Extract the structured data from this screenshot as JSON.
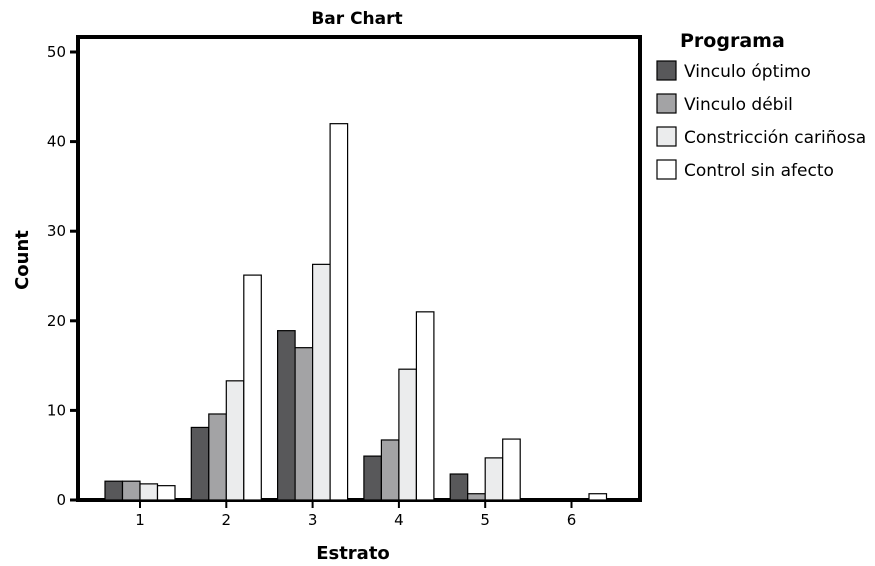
{
  "chart_data": {
    "type": "bar",
    "title": "Bar Chart",
    "xlabel": "Estrato",
    "ylabel": "Count",
    "categories": [
      "1",
      "2",
      "3",
      "4",
      "5",
      "6"
    ],
    "ylim": [
      0,
      50
    ],
    "yticks": [
      "0",
      "10",
      "20",
      "30",
      "40",
      "50"
    ],
    "legend_title": "Programa",
    "legend_position": "right",
    "grid": false,
    "series": [
      {
        "name": "Vinculo óptimo",
        "color": "#58585a",
        "values": [
          2.1,
          8.1,
          18.9,
          4.9,
          2.9,
          0
        ]
      },
      {
        "name": "Vinculo débil",
        "color": "#a3a3a5",
        "values": [
          2.1,
          9.6,
          17.0,
          6.7,
          0.7,
          0
        ]
      },
      {
        "name": "Constricción cariñosa",
        "color": "#ebeced",
        "values": [
          1.8,
          13.3,
          26.3,
          14.6,
          4.7,
          0
        ]
      },
      {
        "name": "Control sin afecto",
        "color": "#ffffff",
        "values": [
          1.6,
          25.1,
          42.0,
          21.0,
          6.8,
          0.7
        ]
      }
    ]
  }
}
